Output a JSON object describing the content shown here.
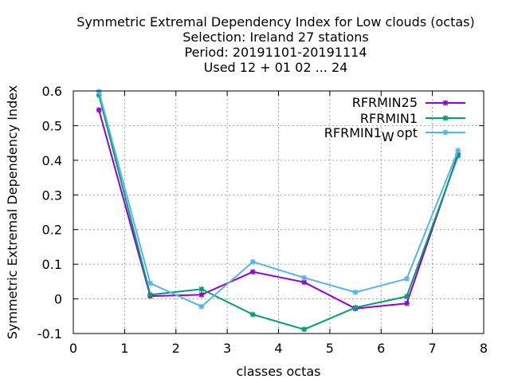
{
  "chart_data": {
    "type": "line",
    "title_lines": [
      "Symmetric Extremal Dependency Index  for Low clouds (octas)",
      "Selection: Ireland      27 stations",
      "Period: 20191101-20191114",
      "Used  12 + 01 02 ... 24"
    ],
    "xlabel": "classes octas",
    "ylabel": "Symmetric Extremal Dependency Index",
    "xlim": [
      0,
      8
    ],
    "ylim": [
      -0.1,
      0.6
    ],
    "xticks": [
      0,
      1,
      2,
      3,
      4,
      5,
      6,
      7,
      8
    ],
    "yticks": [
      -0.1,
      0,
      0.1,
      0.2,
      0.3,
      0.4,
      0.5,
      0.6
    ],
    "ytick_labels": [
      "-0.1",
      "0",
      "0.1",
      "0.2",
      "0.3",
      "0.4",
      "0.5",
      "0.6"
    ],
    "grid": true,
    "legend_position": "top-right",
    "series": [
      {
        "name": "RFRMIN25",
        "color": "#9400d3",
        "x": [
          0.5,
          1.5,
          2.5,
          3.5,
          4.5,
          5.5,
          6.5,
          7.5
        ],
        "y": [
          0.545,
          0.008,
          0.012,
          0.078,
          0.048,
          -0.028,
          -0.013,
          0.418
        ]
      },
      {
        "name": "RFRMIN1",
        "color": "#009e73",
        "x": [
          0.5,
          1.5,
          2.5,
          3.5,
          4.5,
          5.5,
          6.5,
          7.5
        ],
        "y": [
          0.588,
          0.012,
          0.028,
          -0.045,
          -0.088,
          -0.025,
          0.007,
          0.413
        ]
      },
      {
        "name_main": "RFRMIN1",
        "name_sub": "W",
        "name_suffix": "opt",
        "color": "#56b4e9",
        "x": [
          0.5,
          1.5,
          2.5,
          3.5,
          4.5,
          5.5,
          6.5,
          7.5
        ],
        "y": [
          0.598,
          0.045,
          -0.022,
          0.107,
          0.061,
          0.019,
          0.058,
          0.428
        ]
      }
    ]
  }
}
